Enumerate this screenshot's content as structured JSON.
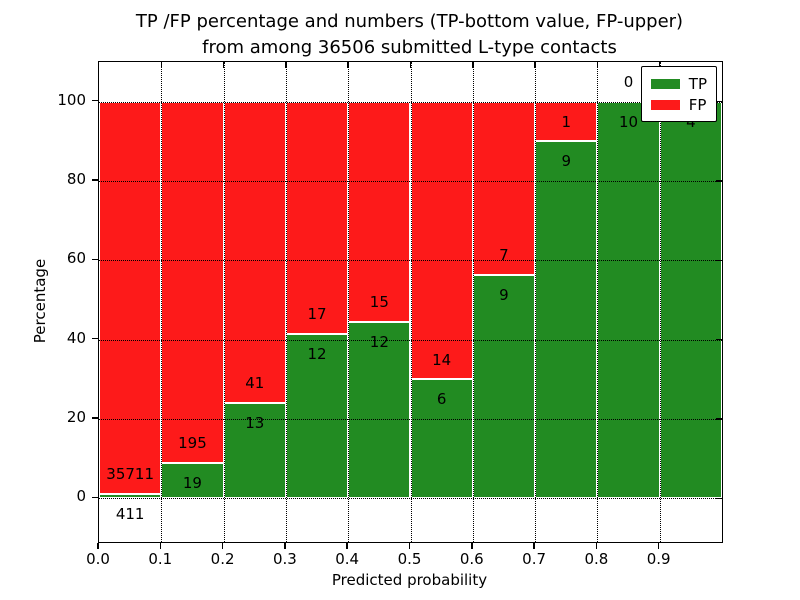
{
  "figure": {
    "title_line1": "TP /FP percentage and numbers (TP-bottom value, FP-upper)",
    "title_line2": "from among 36506 submitted L-type contacts",
    "xlabel": "Predicted probability",
    "ylabel": "Percentage"
  },
  "chart_data": {
    "type": "bar",
    "stacked": true,
    "normalized": "each bin scaled to 100%",
    "title": "TP /FP percentage and numbers (TP-bottom value, FP-upper) from among 36506 submitted L-type contacts",
    "xlabel": "Predicted probability",
    "ylabel": "Percentage",
    "total_submitted_contacts": 36506,
    "xlim": [
      0.0,
      1.0
    ],
    "ylim": [
      -11,
      110
    ],
    "xticks": [
      "0.0",
      "0.1",
      "0.2",
      "0.3",
      "0.4",
      "0.5",
      "0.6",
      "0.7",
      "0.8",
      "0.9"
    ],
    "yticks": [
      0,
      20,
      40,
      60,
      80,
      100
    ],
    "grid": "dotted",
    "legend_position": "upper right",
    "colors": {
      "tp": "#228b22",
      "fp": "#fd1a1a",
      "bar_edge": "#ffffff",
      "grid": "#000000",
      "text": "#000000"
    },
    "legend": [
      {
        "label": "TP",
        "series": "tp"
      },
      {
        "label": "FP",
        "series": "fp"
      }
    ],
    "bins": [
      {
        "range": [
          0.0,
          0.1
        ],
        "tp_count": 411,
        "fp_count": 35711,
        "tp_label": "411",
        "fp_label": "35711",
        "tp_percent": 1.14
      },
      {
        "range": [
          0.1,
          0.2
        ],
        "tp_count": 19,
        "fp_count": 195,
        "tp_label": "19",
        "fp_label": "195",
        "tp_percent": 8.88
      },
      {
        "range": [
          0.2,
          0.3
        ],
        "tp_count": 13,
        "fp_count": 41,
        "tp_label": "13",
        "fp_label": "41",
        "tp_percent": 24.07
      },
      {
        "range": [
          0.3,
          0.4
        ],
        "tp_count": 12,
        "fp_count": 17,
        "tp_label": "12",
        "fp_label": "17",
        "tp_percent": 41.38
      },
      {
        "range": [
          0.4,
          0.5
        ],
        "tp_count": 12,
        "fp_count": 15,
        "tp_label": "12",
        "fp_label": "15",
        "tp_percent": 44.44
      },
      {
        "range": [
          0.5,
          0.6
        ],
        "tp_count": 6,
        "fp_count": 14,
        "tp_label": "6",
        "fp_label": "14",
        "tp_percent": 30.0
      },
      {
        "range": [
          0.6,
          0.7
        ],
        "tp_count": 9,
        "fp_count": 7,
        "tp_label": "9",
        "fp_label": "7",
        "tp_percent": 56.25
      },
      {
        "range": [
          0.7,
          0.8
        ],
        "tp_count": 9,
        "fp_count": 1,
        "tp_label": "9",
        "fp_label": "1",
        "tp_percent": 90.0
      },
      {
        "range": [
          0.8,
          0.9
        ],
        "tp_count": 10,
        "fp_count": 0,
        "tp_label": "10",
        "fp_label": "0",
        "tp_percent": 100.0
      },
      {
        "range": [
          0.9,
          1.0
        ],
        "tp_count": 4,
        "fp_count": 0,
        "tp_label": "4",
        "fp_label": "",
        "tp_percent": 100.0
      }
    ]
  }
}
